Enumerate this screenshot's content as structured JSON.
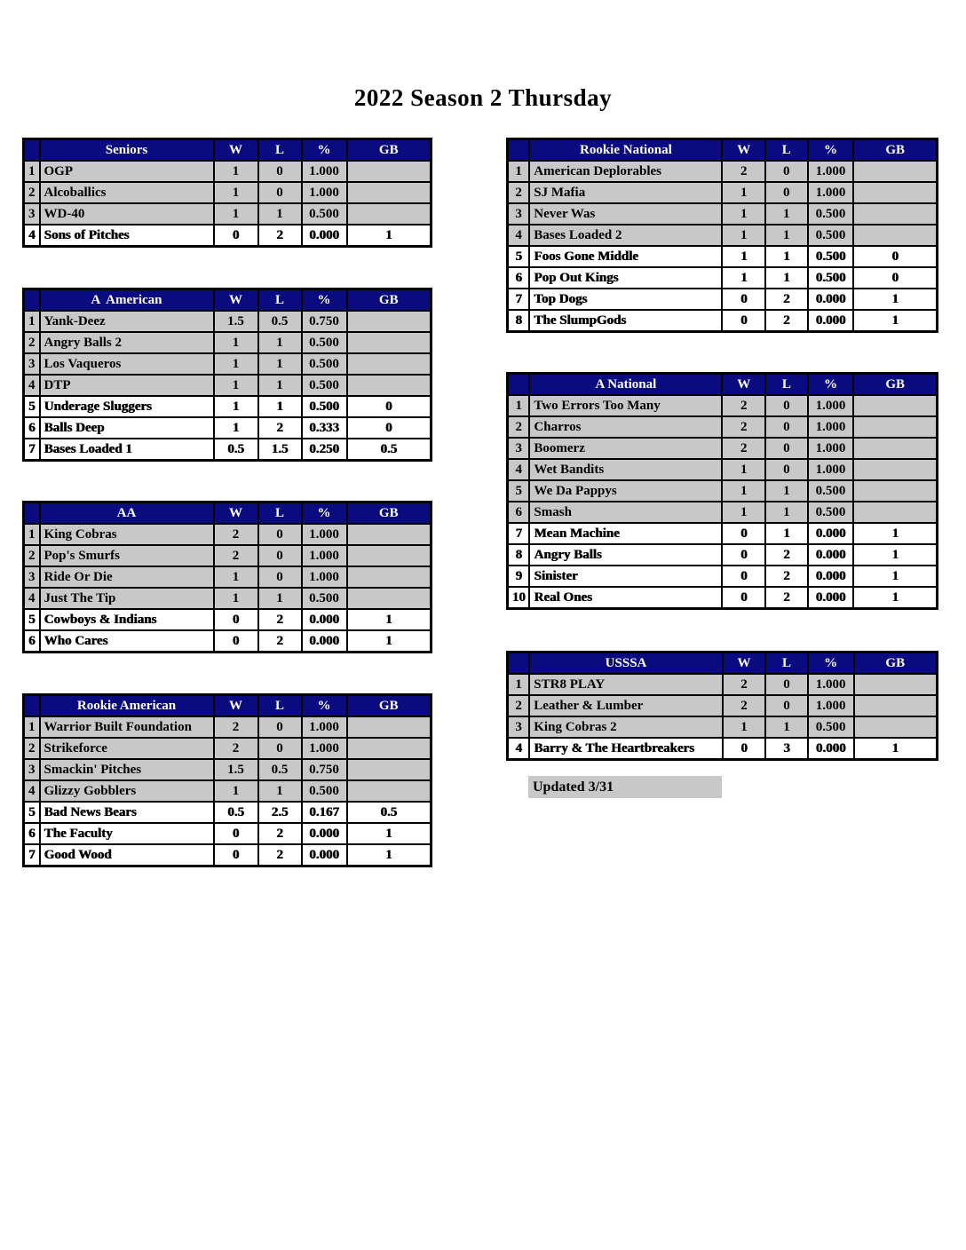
{
  "title": "2022 Season 2 Thursday",
  "columns": {
    "w": "W",
    "l": "L",
    "pct": "%",
    "gb": "GB"
  },
  "tables": [
    {
      "name": "Seniors",
      "rows": [
        {
          "rank": "1",
          "team": "OGP",
          "w": "1",
          "l": "0",
          "pct": "1.000",
          "gb": "",
          "highlight": false
        },
        {
          "rank": "2",
          "team": "Alcoballics",
          "w": "1",
          "l": "0",
          "pct": "1.000",
          "gb": "",
          "highlight": false
        },
        {
          "rank": "3",
          "team": "WD-40",
          "w": "1",
          "l": "1",
          "pct": "0.500",
          "gb": "",
          "highlight": false
        },
        {
          "rank": "4",
          "team": "Sons of Pitches",
          "w": "0",
          "l": "2",
          "pct": "0.000",
          "gb": "1",
          "highlight": true
        }
      ]
    },
    {
      "name": "A  American",
      "rows": [
        {
          "rank": "1",
          "team": "Yank-Deez",
          "w": "1.5",
          "l": "0.5",
          "pct": "0.750",
          "gb": "",
          "highlight": false
        },
        {
          "rank": "2",
          "team": "Angry Balls 2",
          "w": "1",
          "l": "1",
          "pct": "0.500",
          "gb": "",
          "highlight": false
        },
        {
          "rank": "3",
          "team": "Los Vaqueros",
          "w": "1",
          "l": "1",
          "pct": "0.500",
          "gb": "",
          "highlight": false
        },
        {
          "rank": "4",
          "team": "DTP",
          "w": "1",
          "l": "1",
          "pct": "0.500",
          "gb": "",
          "highlight": false
        },
        {
          "rank": "5",
          "team": "Underage Sluggers",
          "w": "1",
          "l": "1",
          "pct": "0.500",
          "gb": "0",
          "highlight": true
        },
        {
          "rank": "6",
          "team": "Balls Deep",
          "w": "1",
          "l": "2",
          "pct": "0.333",
          "gb": "0",
          "highlight": true
        },
        {
          "rank": "7",
          "team": "Bases Loaded 1",
          "w": "0.5",
          "l": "1.5",
          "pct": "0.250",
          "gb": "0.5",
          "highlight": true
        }
      ]
    },
    {
      "name": "AA",
      "rows": [
        {
          "rank": "1",
          "team": "King Cobras",
          "w": "2",
          "l": "0",
          "pct": "1.000",
          "gb": "",
          "highlight": false
        },
        {
          "rank": "2",
          "team": "Pop's Smurfs",
          "w": "2",
          "l": "0",
          "pct": "1.000",
          "gb": "",
          "highlight": false
        },
        {
          "rank": "3",
          "team": "Ride Or Die",
          "w": "1",
          "l": "0",
          "pct": "1.000",
          "gb": "",
          "highlight": false
        },
        {
          "rank": "4",
          "team": "Just The Tip",
          "w": "1",
          "l": "1",
          "pct": "0.500",
          "gb": "",
          "highlight": false
        },
        {
          "rank": "5",
          "team": "Cowboys & Indians",
          "w": "0",
          "l": "2",
          "pct": "0.000",
          "gb": "1",
          "highlight": true
        },
        {
          "rank": "6",
          "team": "Who Cares",
          "w": "0",
          "l": "2",
          "pct": "0.000",
          "gb": "1",
          "highlight": true
        }
      ]
    },
    {
      "name": "Rookie American",
      "rows": [
        {
          "rank": "1",
          "team": "Warrior Built Foundation",
          "w": "2",
          "l": "0",
          "pct": "1.000",
          "gb": "",
          "highlight": false
        },
        {
          "rank": "2",
          "team": "Strikeforce",
          "w": "2",
          "l": "0",
          "pct": "1.000",
          "gb": "",
          "highlight": false
        },
        {
          "rank": "3",
          "team": "Smackin' Pitches",
          "w": "1.5",
          "l": "0.5",
          "pct": "0.750",
          "gb": "",
          "highlight": false
        },
        {
          "rank": "4",
          "team": "Glizzy Gobblers",
          "w": "1",
          "l": "1",
          "pct": "0.500",
          "gb": "",
          "highlight": false
        },
        {
          "rank": "5",
          "team": "Bad News Bears",
          "w": "0.5",
          "l": "2.5",
          "pct": "0.167",
          "gb": "0.5",
          "highlight": true
        },
        {
          "rank": "6",
          "team": "The Faculty",
          "w": "0",
          "l": "2",
          "pct": "0.000",
          "gb": "1",
          "highlight": true
        },
        {
          "rank": "7",
          "team": "Good Wood",
          "w": "0",
          "l": "2",
          "pct": "0.000",
          "gb": "1",
          "highlight": true
        }
      ]
    },
    {
      "name": "Rookie National",
      "rows": [
        {
          "rank": "1",
          "team": "American Deplorables",
          "w": "2",
          "l": "0",
          "pct": "1.000",
          "gb": "",
          "highlight": false
        },
        {
          "rank": "2",
          "team": "SJ Mafia",
          "w": "1",
          "l": "0",
          "pct": "1.000",
          "gb": "",
          "highlight": false
        },
        {
          "rank": "3",
          "team": "Never Was",
          "w": "1",
          "l": "1",
          "pct": "0.500",
          "gb": "",
          "highlight": false
        },
        {
          "rank": "4",
          "team": "Bases Loaded 2",
          "w": "1",
          "l": "1",
          "pct": "0.500",
          "gb": "",
          "highlight": false
        },
        {
          "rank": "5",
          "team": "Foos Gone Middle",
          "w": "1",
          "l": "1",
          "pct": "0.500",
          "gb": "0",
          "highlight": true
        },
        {
          "rank": "6",
          "team": "Pop Out Kings",
          "w": "1",
          "l": "1",
          "pct": "0.500",
          "gb": "0",
          "highlight": true
        },
        {
          "rank": "7",
          "team": "Top Dogs",
          "w": "0",
          "l": "2",
          "pct": "0.000",
          "gb": "1",
          "highlight": true
        },
        {
          "rank": "8",
          "team": "The SlumpGods",
          "w": "0",
          "l": "2",
          "pct": "0.000",
          "gb": "1",
          "highlight": true
        }
      ]
    },
    {
      "name": "A National",
      "rows": [
        {
          "rank": "1",
          "team": "Two Errors Too Many",
          "w": "2",
          "l": "0",
          "pct": "1.000",
          "gb": "",
          "highlight": false
        },
        {
          "rank": "2",
          "team": "Charros",
          "w": "2",
          "l": "0",
          "pct": "1.000",
          "gb": "",
          "highlight": false
        },
        {
          "rank": "3",
          "team": "Boomerz",
          "w": "2",
          "l": "0",
          "pct": "1.000",
          "gb": "",
          "highlight": false
        },
        {
          "rank": "4",
          "team": "Wet Bandits",
          "w": "1",
          "l": "0",
          "pct": "1.000",
          "gb": "",
          "highlight": false
        },
        {
          "rank": "5",
          "team": "We Da Pappys",
          "w": "1",
          "l": "1",
          "pct": "0.500",
          "gb": "",
          "highlight": false
        },
        {
          "rank": "6",
          "team": "Smash",
          "w": "1",
          "l": "1",
          "pct": "0.500",
          "gb": "",
          "highlight": false
        },
        {
          "rank": "7",
          "team": "Mean Machine",
          "w": "0",
          "l": "1",
          "pct": "0.000",
          "gb": "1",
          "highlight": true
        },
        {
          "rank": "8",
          "team": "Angry Balls",
          "w": "0",
          "l": "2",
          "pct": "0.000",
          "gb": "1",
          "highlight": true
        },
        {
          "rank": "9",
          "team": "Sinister",
          "w": "0",
          "l": "2",
          "pct": "0.000",
          "gb": "1",
          "highlight": true
        },
        {
          "rank": "10",
          "team": "Real Ones",
          "w": "0",
          "l": "2",
          "pct": "0.000",
          "gb": "1",
          "highlight": true
        }
      ]
    },
    {
      "name": "USSSA",
      "rows": [
        {
          "rank": "1",
          "team": "STR8 PLAY",
          "w": "2",
          "l": "0",
          "pct": "1.000",
          "gb": "",
          "highlight": false
        },
        {
          "rank": "2",
          "team": "Leather & Lumber",
          "w": "2",
          "l": "0",
          "pct": "1.000",
          "gb": "",
          "highlight": false
        },
        {
          "rank": "3",
          "team": "King Cobras 2",
          "w": "1",
          "l": "1",
          "pct": "0.500",
          "gb": "",
          "highlight": false
        },
        {
          "rank": "4",
          "team": "Barry & The Heartbreakers",
          "w": "0",
          "l": "3",
          "pct": "0.000",
          "gb": "1",
          "highlight": true
        }
      ]
    }
  ],
  "footer": {
    "updated_label": "Updated 3/31"
  },
  "colors": {
    "header_bg": "#0b0b80",
    "header_text": "#ffffff",
    "row_gray": "#c8c8c8",
    "row_white": "#ffffff",
    "border": "#000000"
  }
}
